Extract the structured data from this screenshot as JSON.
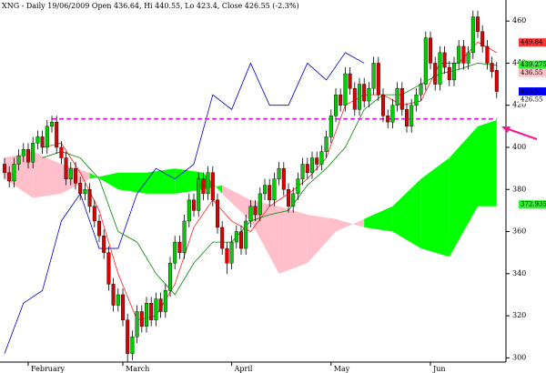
{
  "chart_data": {
    "type": "candlestick",
    "title": "XNG - Daily 19/06/2009 Open 436.64, Hi 440.55, Lo 423.4, Close 426.55 (-2.3%)",
    "categories": [
      null,
      null,
      null,
      null,
      null,
      "February",
      null,
      null,
      null,
      null,
      null,
      null,
      null,
      null,
      null,
      null,
      null,
      null,
      null,
      null,
      null,
      null,
      null,
      null,
      null,
      "March",
      null,
      null,
      null,
      null,
      null,
      null,
      null,
      null,
      null,
      null,
      null,
      null,
      null,
      null,
      null,
      null,
      null,
      null,
      null,
      null,
      null,
      null,
      "April",
      null,
      null,
      null,
      null,
      null,
      null,
      null,
      null,
      null,
      null,
      null,
      null,
      null,
      null,
      null,
      null,
      null,
      null,
      null,
      null,
      "May",
      null,
      null,
      null,
      null,
      null,
      null,
      null,
      null,
      null,
      null,
      null,
      null,
      null,
      null,
      null,
      null,
      null,
      null,
      null,
      null,
      "Jun",
      null,
      null,
      null,
      null,
      null,
      null,
      null,
      null,
      null,
      null,
      null,
      null,
      null,
      null
    ],
    "open": [
      392,
      388,
      384,
      392,
      396,
      399,
      393,
      402,
      405,
      400,
      410,
      412,
      400,
      395,
      385,
      390,
      383,
      378,
      380,
      372,
      365,
      358,
      350,
      335,
      325,
      330,
      318,
      302,
      310,
      322,
      315,
      326,
      318,
      328,
      322,
      332,
      345,
      355,
      350,
      365,
      375,
      370,
      385,
      378,
      388,
      375,
      362,
      352,
      345,
      355,
      360,
      352,
      365,
      372,
      368,
      378,
      382,
      375,
      385,
      390,
      380,
      372,
      378,
      385,
      392,
      388,
      395,
      392,
      398,
      405,
      415,
      425,
      420,
      435,
      428,
      418,
      430,
      422,
      428,
      440,
      425,
      415,
      412,
      420,
      428,
      418,
      410,
      420,
      425,
      430,
      452,
      440,
      430,
      445,
      438,
      432,
      440,
      448,
      440,
      445,
      462,
      455,
      448,
      440,
      436.64
    ],
    "high": [
      395,
      391,
      395,
      399,
      402,
      402,
      405,
      408,
      408,
      413,
      415,
      415,
      403,
      398,
      393,
      393,
      386,
      383,
      383,
      375,
      368,
      361,
      353,
      338,
      333,
      333,
      321,
      313,
      325,
      325,
      329,
      329,
      331,
      331,
      335,
      348,
      358,
      358,
      368,
      378,
      378,
      388,
      388,
      391,
      391,
      378,
      365,
      355,
      358,
      363,
      363,
      368,
      375,
      375,
      381,
      385,
      385,
      388,
      393,
      393,
      383,
      381,
      388,
      395,
      395,
      398,
      398,
      401,
      408,
      418,
      428,
      428,
      438,
      438,
      431,
      433,
      433,
      431,
      443,
      443,
      428,
      418,
      423,
      431,
      431,
      421,
      423,
      428,
      433,
      455,
      455,
      443,
      448,
      448,
      441,
      443,
      451,
      451,
      448,
      465,
      465,
      458,
      451,
      443,
      440.55
    ],
    "low": [
      385,
      381,
      381,
      389,
      393,
      390,
      390,
      399,
      397,
      397,
      407,
      397,
      392,
      382,
      382,
      380,
      375,
      375,
      369,
      362,
      355,
      347,
      332,
      322,
      322,
      315,
      298,
      299,
      307,
      312,
      312,
      315,
      315,
      319,
      319,
      329,
      342,
      347,
      347,
      362,
      367,
      367,
      375,
      375,
      372,
      359,
      349,
      340,
      342,
      352,
      349,
      349,
      362,
      365,
      365,
      375,
      372,
      372,
      382,
      377,
      369,
      369,
      375,
      382,
      385,
      385,
      389,
      389,
      395,
      402,
      412,
      417,
      417,
      425,
      415,
      415,
      419,
      419,
      425,
      422,
      412,
      409,
      409,
      417,
      415,
      407,
      407,
      417,
      422,
      427,
      437,
      427,
      427,
      435,
      429,
      429,
      437,
      437,
      437,
      442,
      452,
      445,
      437,
      433,
      423.4
    ],
    "close": [
      388,
      384,
      392,
      396,
      399,
      393,
      402,
      405,
      400,
      410,
      412,
      400,
      395,
      385,
      390,
      383,
      378,
      380,
      372,
      365,
      358,
      350,
      335,
      325,
      330,
      318,
      302,
      310,
      322,
      315,
      326,
      318,
      328,
      322,
      332,
      345,
      355,
      350,
      365,
      375,
      370,
      385,
      378,
      388,
      375,
      362,
      352,
      345,
      355,
      360,
      352,
      365,
      372,
      368,
      378,
      382,
      375,
      385,
      390,
      380,
      372,
      378,
      385,
      392,
      388,
      395,
      392,
      398,
      405,
      415,
      425,
      420,
      435,
      428,
      418,
      430,
      422,
      428,
      440,
      425,
      415,
      412,
      420,
      428,
      418,
      410,
      420,
      425,
      430,
      452,
      440,
      430,
      445,
      438,
      432,
      440,
      448,
      440,
      445,
      462,
      455,
      448,
      440,
      436,
      426.55
    ],
    "up_color": "#00cc00",
    "down_color": "#dd0000",
    "lines": [
      {
        "color": "#0000cc",
        "x": [
          0,
          4,
          8,
          12,
          16,
          20,
          24,
          28,
          32,
          36,
          40,
          44,
          48,
          52,
          56,
          60,
          64,
          68,
          72,
          76
        ],
        "values": [
          302,
          326,
          332,
          365,
          378,
          352,
          352,
          378,
          390,
          385,
          392,
          425,
          418,
          440,
          420,
          420,
          440,
          432,
          445,
          440
        ]
      },
      {
        "color": "#ff2020",
        "x": [
          8,
          12,
          16,
          20,
          24,
          28,
          32,
          36,
          40,
          44,
          48,
          52,
          56,
          60,
          64,
          68,
          72,
          76,
          80,
          84,
          88,
          92,
          96,
          100,
          104
        ],
        "values": [
          400,
          402,
          388,
          370,
          340,
          318,
          320,
          335,
          362,
          375,
          365,
          360,
          372,
          378,
          385,
          395,
          420,
          425,
          425,
          420,
          422,
          440,
          440,
          450,
          445
        ]
      },
      {
        "color": "#008800",
        "x": [
          8,
          12,
          16,
          20,
          24,
          28,
          32,
          36,
          40,
          44,
          48,
          52,
          56,
          60,
          64,
          68,
          72,
          76,
          80,
          84,
          88,
          92,
          96,
          100,
          104
        ],
        "values": [
          395,
          398,
          395,
          385,
          360,
          355,
          340,
          330,
          345,
          355,
          355,
          365,
          368,
          370,
          382,
          390,
          400,
          418,
          425,
          425,
          430,
          435,
          437,
          440,
          439
        ]
      }
    ],
    "cloud": {
      "x": [
        0,
        6,
        12,
        18,
        24,
        30,
        36,
        42,
        46,
        52,
        58,
        64,
        70,
        76,
        82,
        88,
        94,
        100,
        104
      ],
      "span_a": [
        385,
        376,
        378,
        385,
        388,
        388,
        390,
        388,
        378,
        365,
        340,
        345,
        360,
        366,
        372,
        385,
        395,
        410,
        413
      ],
      "span_b": [
        395,
        398,
        392,
        388,
        380,
        378,
        378,
        380,
        382,
        375,
        372,
        368,
        366,
        362,
        360,
        352,
        348,
        372,
        372
      ],
      "up_color": "#00ff00",
      "down_color": "#ffc0cb"
    },
    "reference_line": {
      "value": 413.5,
      "x": [
        10,
        104
      ],
      "color": "#ff00ff"
    },
    "price_labels": [
      {
        "value": 449.84,
        "color": "#ff3333"
      },
      {
        "value": 439.275,
        "color": "#33ee33"
      },
      {
        "value": 436.55,
        "color": "#ffc0cb"
      },
      {
        "value": 426.55,
        "color": "#0000ff"
      },
      {
        "value": 426.55,
        "color": "#ffffff"
      },
      {
        "value": 372.935,
        "color": "#33ee33"
      }
    ],
    "ylim": [
      298,
      470
    ],
    "yticks": [
      300,
      320,
      340,
      360,
      380,
      400,
      420,
      440,
      460
    ]
  }
}
